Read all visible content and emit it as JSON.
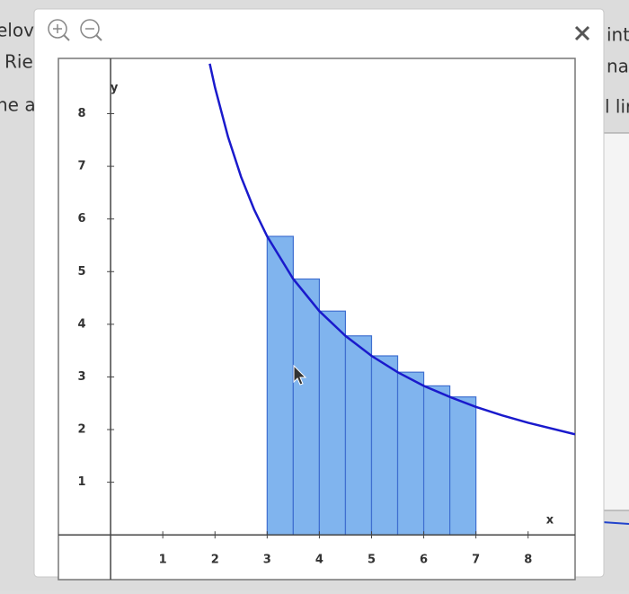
{
  "background_text": {
    "left": [
      "elov",
      "Rie",
      "he a"
    ],
    "right": [
      "inte",
      "nar",
      "l lir"
    ]
  },
  "chart_data": {
    "type": "riemann",
    "x_label": "x",
    "y_label": "y",
    "xlim": [
      -1,
      8.9
    ],
    "ylim": [
      -0.85,
      9.05
    ],
    "xticks": [
      1,
      2,
      3,
      4,
      5,
      6,
      7,
      8
    ],
    "yticks": [
      1,
      2,
      3,
      4,
      5,
      6,
      7,
      8
    ],
    "bars": {
      "color": "#80b4ee",
      "edges": [
        3,
        3.5,
        4,
        4.5,
        5,
        5.5,
        6,
        6.5,
        7
      ],
      "values": [
        5.67,
        4.86,
        4.25,
        3.78,
        3.4,
        3.09,
        2.83,
        2.62
      ]
    },
    "curve": {
      "color": "#1a1acc",
      "x": [
        1.9,
        2,
        2.25,
        2.5,
        2.75,
        3,
        3.5,
        4,
        4.5,
        5,
        5.5,
        6,
        6.5,
        7,
        7.5,
        8,
        8.9
      ],
      "values": [
        8.95,
        8.5,
        7.56,
        6.8,
        6.18,
        5.67,
        4.86,
        4.25,
        3.78,
        3.4,
        3.09,
        2.83,
        2.62,
        2.43,
        2.27,
        2.13,
        1.91
      ]
    }
  }
}
